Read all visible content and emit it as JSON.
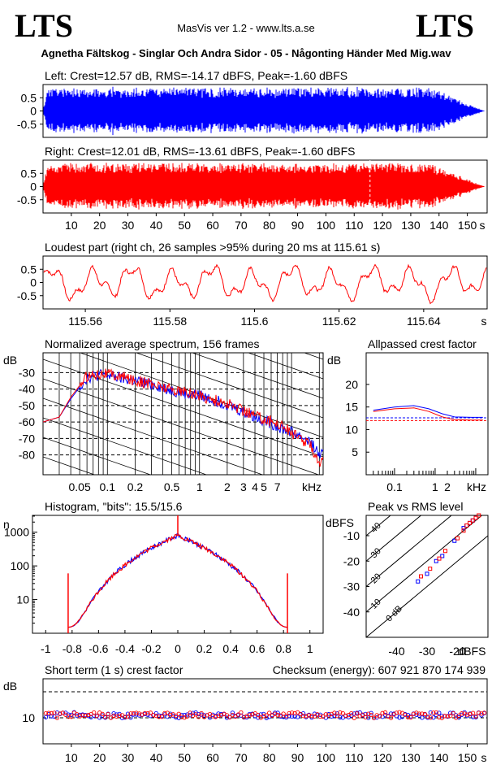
{
  "header": {
    "logo_left": "LTS",
    "logo_right": "LTS",
    "app_title": "MasVis ver 1.2 - www.lts.a.se",
    "file_title": "Agnetha Fältskog - Singlar Och Andra Sidor - 05 - Någonting Händer Med Mig.wav"
  },
  "chart_data": [
    {
      "id": "left_waveform",
      "type": "area",
      "title": "Left: Crest=12.57 dB, RMS=-14.17 dBFS, Peak=-1.60 dBFS",
      "ytick_labels": [
        "0.5",
        "0",
        "-0.5"
      ],
      "yticks": [
        0.5,
        0,
        -0.5
      ],
      "ylim": [
        -1,
        1
      ],
      "xlim": [
        0,
        157
      ],
      "duration_s": 156,
      "color": "#0000ff"
    },
    {
      "id": "right_waveform",
      "type": "area",
      "title": "Right: Crest=12.01 dB, RMS=-13.61 dBFS, Peak=-1.60 dBFS",
      "ytick_labels": [
        "0.5",
        "0",
        "-0.5"
      ],
      "yticks": [
        0.5,
        0,
        -0.5
      ],
      "ylim": [
        -1,
        1
      ],
      "xlim": [
        0,
        157
      ],
      "duration_s": 156,
      "loudest_marker_s": 115.61,
      "xtick_labels": [
        "10",
        "20",
        "30",
        "40",
        "50",
        "60",
        "70",
        "80",
        "90",
        "100",
        "110",
        "120",
        "130",
        "140",
        "150",
        "s"
      ],
      "xticks": [
        10,
        20,
        30,
        40,
        50,
        60,
        70,
        80,
        90,
        100,
        110,
        120,
        130,
        140,
        150
      ],
      "color": "#ff0000"
    },
    {
      "id": "loudest_part",
      "type": "line",
      "title": "Loudest part (right ch, 26 samples >95% during 20 ms at 115.61 s)",
      "ytick_labels": [
        "0.5",
        "0",
        "-0.5"
      ],
      "yticks": [
        0.5,
        0,
        -0.5
      ],
      "ylim": [
        -1,
        1
      ],
      "xlim": [
        115.55,
        115.655
      ],
      "xtick_labels": [
        "115.56",
        "115.58",
        "115.6",
        "115.62",
        "115.64",
        "s"
      ],
      "xticks": [
        115.56,
        115.58,
        115.6,
        115.62,
        115.64
      ],
      "color": "#ff0000"
    },
    {
      "id": "spectrum",
      "type": "line",
      "title": "Normalized average spectrum, 156 frames",
      "ylabel": "dB",
      "ytick_labels": [
        "-30",
        "-40",
        "-50",
        "-60",
        "-70",
        "-80"
      ],
      "yticks": [
        -30,
        -40,
        -50,
        -60,
        -70,
        -80
      ],
      "ylim": [
        -92,
        -18
      ],
      "xscale": "log",
      "xlim_hz": [
        20,
        22000
      ],
      "xtick_labels": [
        "0.05",
        "0.1",
        "0.2",
        "0.5",
        "1",
        "2",
        "3",
        "4",
        "5",
        "7",
        "kHz"
      ],
      "xticks_khz": [
        0.05,
        0.1,
        0.2,
        0.5,
        1,
        2,
        3,
        4,
        5,
        7
      ],
      "series": [
        {
          "color": "#0000ff",
          "points_hz_db": [
            [
              20,
              -60
            ],
            [
              30,
              -57
            ],
            [
              40,
              -46
            ],
            [
              60,
              -33
            ],
            [
              90,
              -31
            ],
            [
              150,
              -34
            ],
            [
              300,
              -37
            ],
            [
              600,
              -42
            ],
            [
              1000,
              -44
            ],
            [
              2000,
              -49
            ],
            [
              3000,
              -54
            ],
            [
              5000,
              -59
            ],
            [
              8000,
              -64
            ],
            [
              12000,
              -68
            ],
            [
              16000,
              -72
            ],
            [
              20000,
              -80
            ]
          ]
        },
        {
          "color": "#ff0000",
          "points_hz_db": [
            [
              20,
              -60
            ],
            [
              30,
              -57
            ],
            [
              40,
              -45
            ],
            [
              60,
              -32
            ],
            [
              90,
              -30
            ],
            [
              150,
              -33
            ],
            [
              300,
              -37
            ],
            [
              600,
              -41
            ],
            [
              1000,
              -44
            ],
            [
              2000,
              -49
            ],
            [
              3000,
              -53
            ],
            [
              5000,
              -58
            ],
            [
              8000,
              -62
            ],
            [
              12000,
              -70
            ],
            [
              16000,
              -74
            ],
            [
              20000,
              -84
            ]
          ]
        }
      ]
    },
    {
      "id": "allpassed_crest",
      "type": "line",
      "title": "Allpassed crest factor",
      "ylabel": "dB",
      "ytick_labels": [
        "20",
        "15",
        "10",
        "5"
      ],
      "yticks": [
        20,
        15,
        10,
        5
      ],
      "ylim": [
        0,
        27
      ],
      "xscale": "log",
      "xtick_labels": [
        "0.1",
        "1",
        "2",
        "kHz"
      ],
      "xticks_khz": [
        0.1,
        1,
        2
      ],
      "series": [
        {
          "color": "#0000ff",
          "points_khz_db": [
            [
              0.03,
              14.3
            ],
            [
              0.1,
              15.0
            ],
            [
              0.3,
              15.3
            ],
            [
              0.7,
              14.6
            ],
            [
              1.5,
              13.5
            ],
            [
              3,
              12.8
            ],
            [
              8,
              12.7
            ],
            [
              15,
              12.7
            ]
          ],
          "reference_db": 12.6
        },
        {
          "color": "#ff0000",
          "points_khz_db": [
            [
              0.03,
              14.0
            ],
            [
              0.1,
              14.6
            ],
            [
              0.3,
              14.8
            ],
            [
              0.7,
              14.0
            ],
            [
              1.5,
              12.8
            ],
            [
              3,
              12.2
            ],
            [
              8,
              12.1
            ],
            [
              15,
              12.1
            ]
          ],
          "reference_db": 12.0
        }
      ]
    },
    {
      "id": "histogram",
      "type": "line",
      "title": "Histogram, \"bits\": 15.5/15.6",
      "ylabel": "n",
      "yscale": "log",
      "ytick_labels": [
        "1000",
        "100",
        "10"
      ],
      "yticks": [
        1000,
        100,
        10
      ],
      "xtick_labels": [
        "-1",
        "-0.8",
        "-0.6",
        "-0.4",
        "-0.2",
        "0",
        "0.2",
        "0.4",
        "0.6",
        "0.8",
        "1"
      ],
      "xticks": [
        -1,
        -0.8,
        -0.6,
        -0.4,
        -0.2,
        0,
        0.2,
        0.4,
        0.6,
        0.8,
        1
      ],
      "xlim": [
        -1.1,
        1.1
      ],
      "ylim_log10": [
        0,
        3.5
      ],
      "peak_count": 800,
      "clip_level": 0.83
    },
    {
      "id": "peak_vs_rms",
      "type": "scatter",
      "title": "Peak vs RMS level",
      "ylabel": "dBFS",
      "xlabel": "dBFS",
      "ytick_labels": [
        "-10",
        "-20",
        "-30",
        "-40"
      ],
      "yticks": [
        -10,
        -20,
        -30,
        -40
      ],
      "xtick_labels": [
        "-40",
        "-30",
        "-20"
      ],
      "xticks": [
        -40,
        -30,
        -20
      ],
      "xlim": [
        -50,
        -10
      ],
      "ylim": [
        -50,
        -2
      ],
      "diagonal_labels": [
        "40",
        "30",
        "20",
        "10",
        "0 dB"
      ],
      "series": [
        {
          "color": "#0000ff",
          "points": [
            [
              -33,
              -28
            ],
            [
              -30,
              -25
            ],
            [
              -27,
              -20
            ],
            [
              -25,
              -18
            ],
            [
              -21,
              -12
            ],
            [
              -18,
              -7
            ],
            [
              -17,
              -6
            ],
            [
              -16,
              -5
            ],
            [
              -15,
              -4
            ],
            [
              -14,
              -3
            ]
          ]
        },
        {
          "color": "#ff0000",
          "points": [
            [
              -32,
              -26
            ],
            [
              -29,
              -23
            ],
            [
              -26,
              -19
            ],
            [
              -24,
              -16
            ],
            [
              -20,
              -11
            ],
            [
              -18,
              -8
            ],
            [
              -17,
              -6
            ],
            [
              -16,
              -5
            ],
            [
              -15,
              -4
            ],
            [
              -14,
              -3
            ],
            [
              -13,
              -2
            ]
          ]
        }
      ]
    },
    {
      "id": "short_term_crest",
      "type": "scatter",
      "title": "Short term (1 s) crest factor",
      "checksum_label": "Checksum (energy):",
      "checksum_value": "607 921 870 174 939",
      "ylabel": "dB",
      "ytick_labels": [
        "10"
      ],
      "yticks": [
        10
      ],
      "ylim": [
        0,
        25
      ],
      "dashed_levels": [
        10,
        20
      ],
      "xtick_labels": [
        "10",
        "20",
        "30",
        "40",
        "50",
        "60",
        "70",
        "80",
        "90",
        "100",
        "110",
        "120",
        "130",
        "140",
        "150",
        "s"
      ],
      "xticks": [
        10,
        20,
        30,
        40,
        50,
        60,
        70,
        80,
        90,
        100,
        110,
        120,
        130,
        140,
        150
      ],
      "xlim": [
        0,
        157
      ],
      "mean_db": 11.0
    }
  ]
}
